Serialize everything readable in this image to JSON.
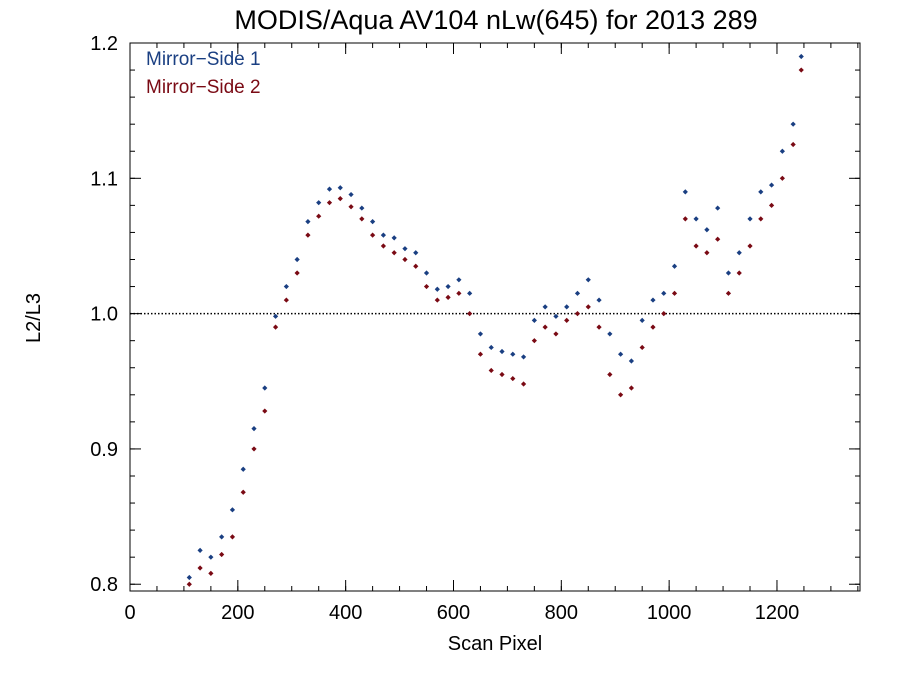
{
  "chart_data": {
    "type": "scatter",
    "title": "MODIS/Aqua AV104 nLw(645) for 2013 289",
    "xlabel": "Scan Pixel",
    "ylabel": "L2/L3",
    "xlim": [
      0,
      1354
    ],
    "ylim": [
      0.795,
      1.2
    ],
    "x_major_ticks": [
      0,
      200,
      400,
      600,
      800,
      1000,
      1200
    ],
    "x_tick_labels": [
      "0",
      "200",
      "400",
      "600",
      "800",
      "1000",
      "1200"
    ],
    "x_minor_step": 50,
    "y_major_ticks": [
      0.8,
      0.9,
      1.0,
      1.1,
      1.2
    ],
    "y_tick_labels": [
      "0.8",
      "0.9",
      "1.0",
      "1.1",
      "1.2"
    ],
    "y_minor_step": 0.02,
    "reference_line": 1.0,
    "legend_position": "top-left",
    "series": [
      {
        "name": "Mirror−Side 1",
        "color": "#1a3f82",
        "x": [
          110,
          130,
          150,
          170,
          190,
          210,
          230,
          250,
          270,
          290,
          310,
          330,
          350,
          370,
          390,
          410,
          430,
          450,
          470,
          490,
          510,
          530,
          550,
          570,
          590,
          610,
          630,
          650,
          670,
          690,
          710,
          730,
          750,
          770,
          790,
          810,
          830,
          850,
          870,
          890,
          910,
          930,
          950,
          970,
          990,
          1010,
          1030,
          1050,
          1070,
          1090,
          1110,
          1130,
          1150,
          1170,
          1190,
          1210,
          1230,
          1245
        ],
        "y": [
          0.805,
          0.825,
          0.82,
          0.835,
          0.855,
          0.885,
          0.915,
          0.945,
          0.998,
          1.02,
          1.04,
          1.068,
          1.082,
          1.092,
          1.093,
          1.088,
          1.078,
          1.068,
          1.058,
          1.056,
          1.048,
          1.045,
          1.03,
          1.018,
          1.02,
          1.025,
          1.015,
          0.985,
          0.975,
          0.972,
          0.97,
          0.968,
          0.995,
          1.005,
          0.998,
          1.005,
          1.015,
          1.025,
          1.01,
          0.985,
          0.97,
          0.965,
          0.995,
          1.01,
          1.015,
          1.035,
          1.09,
          1.07,
          1.062,
          1.078,
          1.03,
          1.045,
          1.07,
          1.09,
          1.095,
          1.12,
          1.14,
          1.19
        ]
      },
      {
        "name": "Mirror−Side 2",
        "color": "#7a0a14",
        "x": [
          110,
          130,
          150,
          170,
          190,
          210,
          230,
          250,
          270,
          290,
          310,
          330,
          350,
          370,
          390,
          410,
          430,
          450,
          470,
          490,
          510,
          530,
          550,
          570,
          590,
          610,
          630,
          650,
          670,
          690,
          710,
          730,
          750,
          770,
          790,
          810,
          830,
          850,
          870,
          890,
          910,
          930,
          950,
          970,
          990,
          1010,
          1030,
          1050,
          1070,
          1090,
          1110,
          1130,
          1150,
          1170,
          1190,
          1210,
          1230,
          1245
        ],
        "y": [
          0.8,
          0.812,
          0.808,
          0.822,
          0.835,
          0.868,
          0.9,
          0.928,
          0.99,
          1.01,
          1.03,
          1.058,
          1.072,
          1.082,
          1.085,
          1.079,
          1.07,
          1.058,
          1.05,
          1.045,
          1.04,
          1.035,
          1.02,
          1.01,
          1.012,
          1.015,
          1.0,
          0.97,
          0.958,
          0.955,
          0.952,
          0.948,
          0.98,
          0.99,
          0.985,
          0.995,
          1.0,
          1.005,
          0.99,
          0.955,
          0.94,
          0.945,
          0.975,
          0.99,
          1.0,
          1.015,
          1.07,
          1.05,
          1.045,
          1.055,
          1.015,
          1.03,
          1.05,
          1.07,
          1.08,
          1.1,
          1.125,
          1.18
        ]
      }
    ]
  }
}
